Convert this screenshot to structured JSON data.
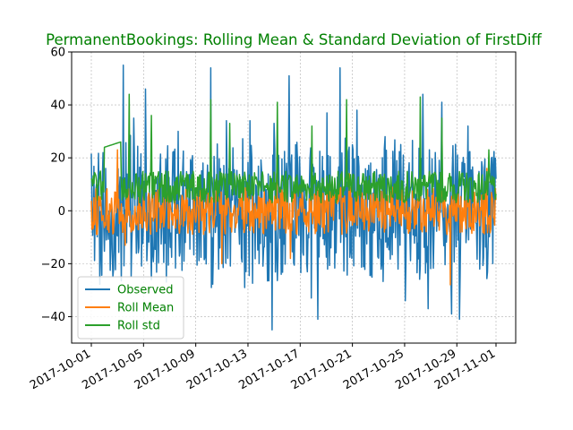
{
  "chart_data": {
    "type": "line",
    "title": "PermanentBookings: Rolling Mean & Standard Deviation of FirstDiff",
    "title_color": "#008000",
    "xlabel": "",
    "ylabel": "",
    "x_range": [
      "2017-10-01",
      "2017-11-01"
    ],
    "ylim": [
      -50,
      60
    ],
    "x_tick_labels": [
      "2017-10-01",
      "2017-10-05",
      "2017-10-09",
      "2017-10-13",
      "2017-10-17",
      "2017-10-21",
      "2017-10-25",
      "2017-10-29",
      "2017-11-01"
    ],
    "y_tick_labels": [
      "−40",
      "−20",
      "0",
      "20",
      "40",
      "60"
    ],
    "y_ticks": [
      -40,
      -20,
      0,
      20,
      40,
      60
    ],
    "grid": true,
    "legend_position": "lower-left",
    "legend_text_color": "#008000",
    "series": [
      {
        "name": "Observed",
        "color": "#1f77b4",
        "approx_range": [
          -45,
          55
        ],
        "peaks": [
          {
            "x": "2017-10-02",
            "y": 16
          },
          {
            "x": "2017-10-02",
            "y": -25
          },
          {
            "x": "2017-10-03",
            "y": 55
          },
          {
            "x": "2017-10-04",
            "y": 35
          },
          {
            "x": "2017-10-05",
            "y": 46
          },
          {
            "x": "2017-10-05",
            "y": -26
          },
          {
            "x": "2017-10-07",
            "y": 30
          },
          {
            "x": "2017-10-10",
            "y": 54
          },
          {
            "x": "2017-10-10",
            "y": -29
          },
          {
            "x": "2017-10-11",
            "y": 34
          },
          {
            "x": "2017-10-12",
            "y": -29
          },
          {
            "x": "2017-10-13",
            "y": 34
          },
          {
            "x": "2017-10-14",
            "y": -45
          },
          {
            "x": "2017-10-15",
            "y": 33
          },
          {
            "x": "2017-10-16",
            "y": 51
          },
          {
            "x": "2017-10-17",
            "y": -33
          },
          {
            "x": "2017-10-18",
            "y": -41
          },
          {
            "x": "2017-10-19",
            "y": 37
          },
          {
            "x": "2017-10-20",
            "y": 54
          },
          {
            "x": "2017-10-21",
            "y": 38
          },
          {
            "x": "2017-10-23",
            "y": 28
          },
          {
            "x": "2017-10-25",
            "y": -34
          },
          {
            "x": "2017-10-26",
            "y": 44
          },
          {
            "x": "2017-10-26",
            "y": -37
          },
          {
            "x": "2017-10-27",
            "y": 41
          },
          {
            "x": "2017-10-28",
            "y": -39
          },
          {
            "x": "2017-10-29",
            "y": 32
          },
          {
            "x": "2017-10-29",
            "y": -41
          },
          {
            "x": "2017-10-31",
            "y": 20
          }
        ]
      },
      {
        "name": "Roll Mean",
        "color": "#ff7f0e",
        "approx_range": [
          -28,
          24
        ],
        "peaks": [
          {
            "x": "2017-10-03",
            "y": 23
          },
          {
            "x": "2017-10-03",
            "y": -13
          },
          {
            "x": "2017-10-10",
            "y": 12
          },
          {
            "x": "2017-10-11",
            "y": -20
          },
          {
            "x": "2017-10-15",
            "y": 14
          },
          {
            "x": "2017-10-16",
            "y": -18
          },
          {
            "x": "2017-10-20",
            "y": 14
          },
          {
            "x": "2017-10-26",
            "y": 15
          },
          {
            "x": "2017-10-28",
            "y": -28
          },
          {
            "x": "2017-10-31",
            "y": 16
          }
        ]
      },
      {
        "name": "Roll std",
        "color": "#2ca02c",
        "approx_range": [
          3,
          44
        ],
        "peaks": [
          {
            "x": "2017-10-01",
            "y": 10
          },
          {
            "x": "2017-10-02",
            "y": 26
          },
          {
            "x": "2017-10-03",
            "y": 44
          },
          {
            "x": "2017-10-05",
            "y": 36
          },
          {
            "x": "2017-10-10",
            "y": 42
          },
          {
            "x": "2017-10-11",
            "y": 33
          },
          {
            "x": "2017-10-15",
            "y": 41
          },
          {
            "x": "2017-10-17",
            "y": 32
          },
          {
            "x": "2017-10-20",
            "y": 42
          },
          {
            "x": "2017-10-26",
            "y": 43
          },
          {
            "x": "2017-10-27",
            "y": 35
          },
          {
            "x": "2017-10-31",
            "y": 23
          }
        ]
      }
    ]
  }
}
